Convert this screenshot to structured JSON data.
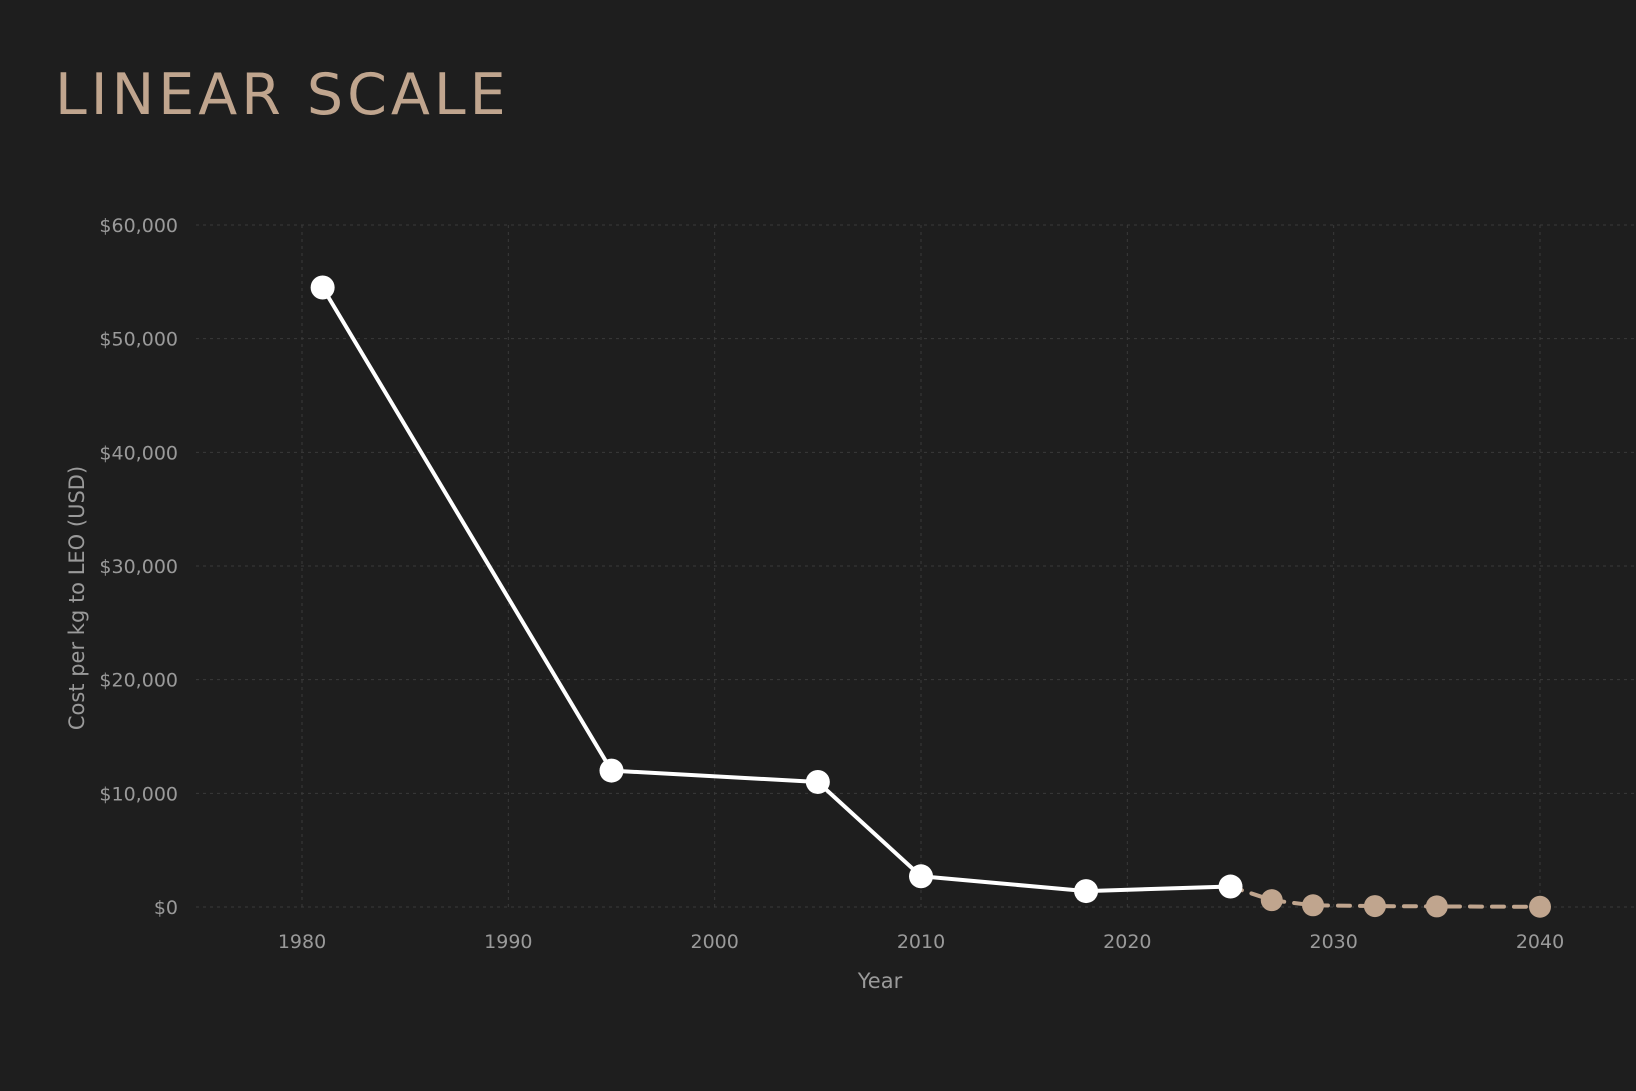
{
  "title": "LINEAR SCALE",
  "colors": {
    "background": "#1e1e1e",
    "title": "#c0a58e",
    "historical": "#ffffff",
    "projected": "#c0a58e",
    "grid": "#3a3a3a",
    "tick_text": "#9a9a9a"
  },
  "chart_data": {
    "type": "line",
    "title": "LINEAR SCALE",
    "xlabel": "Year",
    "ylabel": "Cost per kg to LEO (USD)",
    "xlim": [
      1975,
      2042
    ],
    "ylim": [
      0,
      60000
    ],
    "x_ticks": [
      1980,
      1990,
      2000,
      2010,
      2020,
      2030,
      2040
    ],
    "y_ticks": [
      0,
      10000,
      20000,
      30000,
      40000,
      50000,
      60000
    ],
    "y_tick_labels": [
      "$0",
      "$10,000",
      "$20,000",
      "$30,000",
      "$40,000",
      "$50,000",
      "$60,000"
    ],
    "grid": true,
    "legend": "none",
    "series": [
      {
        "style": "solid",
        "color": "#ffffff",
        "x": [
          1981,
          1995,
          2005,
          2010,
          2018,
          2025
        ],
        "y": [
          54500,
          12000,
          11000,
          2700,
          1400,
          1800
        ]
      },
      {
        "style": "dashed",
        "color": "#c0a58e",
        "x": [
          2025,
          2027,
          2029,
          2032,
          2035,
          2040
        ],
        "y": [
          1800,
          600,
          150,
          80,
          50,
          20
        ]
      }
    ]
  }
}
